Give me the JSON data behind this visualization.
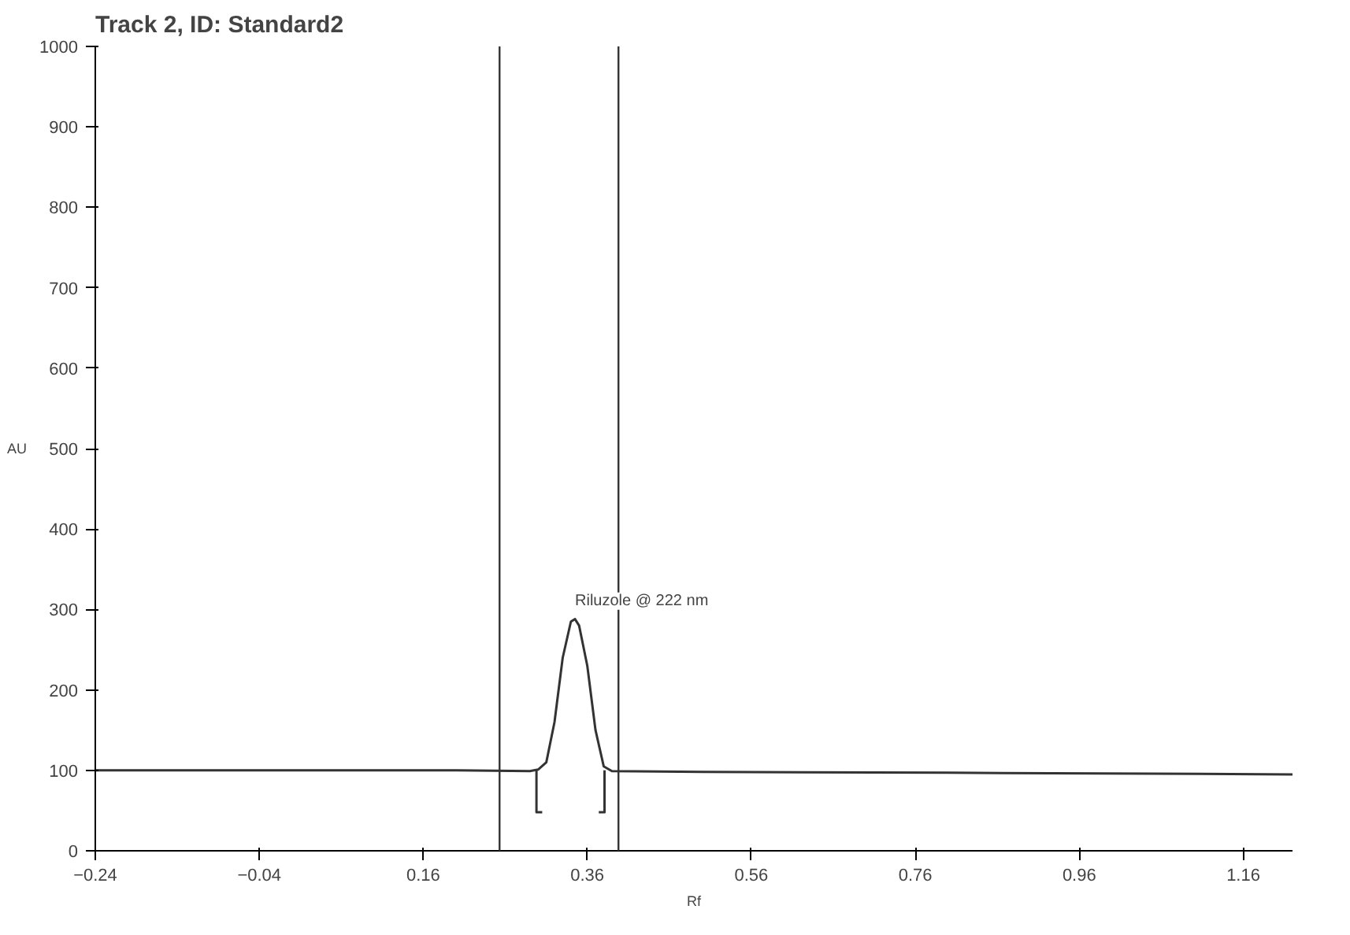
{
  "chart_data": {
    "type": "line",
    "title": "Track 2, ID: Standard2",
    "xlabel": "Rf",
    "ylabel": "AU",
    "series": [
      {
        "color": "#333333",
        "x": [
          -0.24,
          0.0,
          0.2,
          0.29,
          0.3,
          0.31,
          0.32,
          0.33,
          0.34,
          0.345,
          0.35,
          0.36,
          0.37,
          0.38,
          0.39,
          0.5,
          0.8,
          1.22
        ],
        "values": [
          100,
          100,
          100,
          99,
          101,
          110,
          160,
          240,
          285,
          288,
          280,
          230,
          150,
          105,
          99,
          98,
          97,
          95
        ]
      },
      {
        "color": "#333333",
        "x": [
          0.305,
          0.298,
          0.298
        ],
        "values": [
          48,
          48,
          100
        ]
      },
      {
        "color": "#333333",
        "x": [
          0.374,
          0.381,
          0.381
        ],
        "values": [
          48,
          48,
          100
        ]
      }
    ],
    "ref_lines": [
      {
        "axis": "x",
        "value": 0.253,
        "label": null,
        "color": "#333333"
      },
      {
        "axis": "x",
        "value": 0.398,
        "label": null,
        "color": "#333333"
      }
    ],
    "annotations": [
      {
        "text": "Riluzole @ 222 nm",
        "x": 0.345,
        "y": 288
      }
    ],
    "xlim": [
      -0.24,
      1.22
    ],
    "ylim": [
      0,
      1000
    ],
    "xticks": [
      -0.24,
      -0.04,
      0.16,
      0.36,
      0.56,
      0.76,
      0.96,
      1.16
    ],
    "yticks": [
      0,
      100,
      200,
      300,
      400,
      500,
      600,
      700,
      800,
      900,
      1000
    ],
    "grid": false,
    "marker": "none",
    "line_style": "solid"
  }
}
